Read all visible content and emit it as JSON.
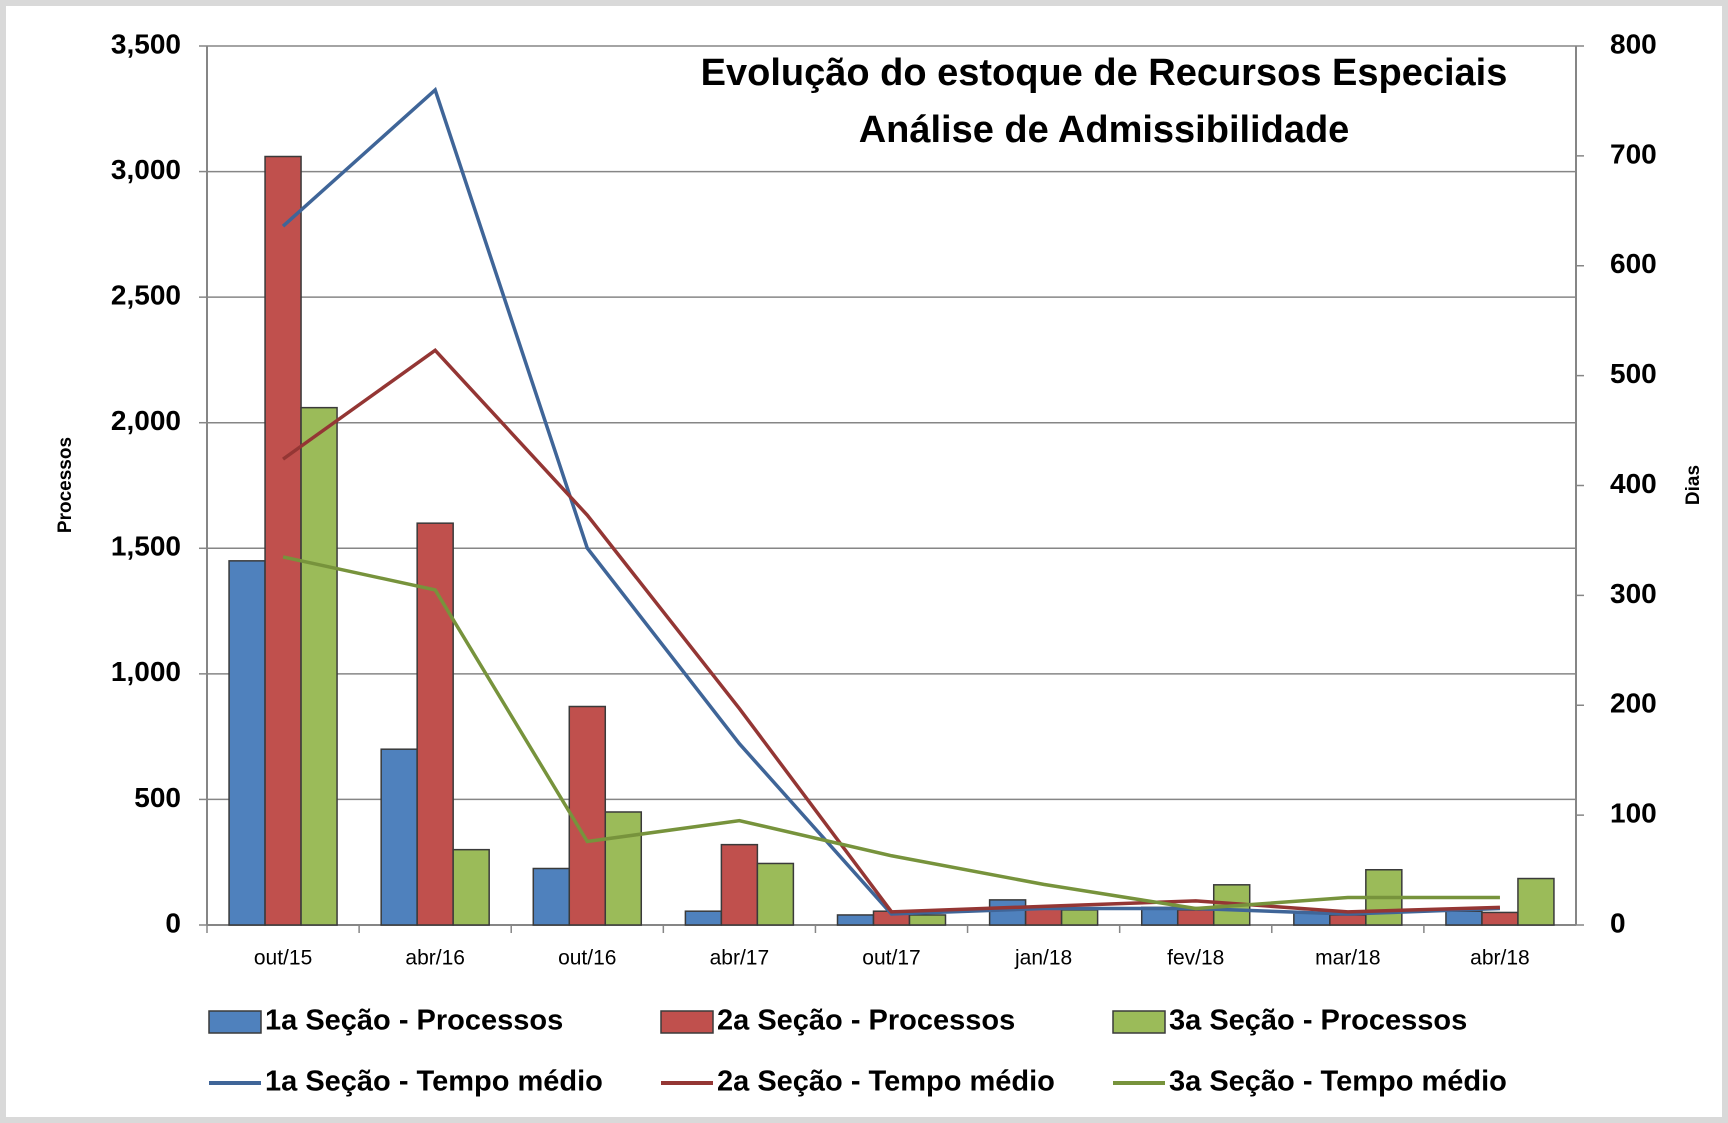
{
  "chart_data": {
    "type": "bar_line",
    "title": [
      "Evolução do estoque de Recursos Especiais",
      "Análise de Admissibilidade"
    ],
    "y_label": "Processos",
    "y2_label": "Dias",
    "categories": [
      "out/15",
      "abr/16",
      "out/16",
      "abr/17",
      "out/17",
      "jan/18",
      "fev/18",
      "mar/18",
      "abr/18"
    ],
    "series": [
      {
        "name": "1a Seção - Processos",
        "type": "bar",
        "color": "#4f81bd",
        "values": [
          1450,
          700,
          225,
          55,
          40,
          100,
          70,
          50,
          55
        ]
      },
      {
        "name": "2a Seção - Processos",
        "type": "bar",
        "color": "#c0504d",
        "values": [
          3060,
          1600,
          870,
          320,
          55,
          70,
          60,
          40,
          50
        ]
      },
      {
        "name": "3a Seção - Processos",
        "type": "bar",
        "color": "#9bbb59",
        "values": [
          2060,
          300,
          450,
          245,
          40,
          60,
          160,
          220,
          185
        ]
      },
      {
        "name": "1a Seção - Tempo médio",
        "type": "line",
        "axis": "y2",
        "color": "#3f6598",
        "values": [
          636,
          760,
          343,
          165,
          10,
          15,
          15,
          10,
          15
        ]
      },
      {
        "name": "2a Seção - Tempo médio",
        "type": "line",
        "axis": "y2",
        "color": "#943634",
        "values": [
          424,
          523,
          373,
          197,
          12,
          17,
          22,
          12,
          16
        ]
      },
      {
        "name": "3a Seção - Tempo médio",
        "type": "line",
        "axis": "y2",
        "color": "#77933c",
        "values": [
          335,
          305,
          76,
          95,
          63,
          37,
          15,
          25,
          25
        ]
      }
    ],
    "ylim": [
      0,
      3500
    ],
    "yticks": [
      0,
      {
        "value": 500,
        "label": "500"
      },
      {
        "value": 1000,
        "label": "1,000"
      },
      {
        "value": 1500,
        "label": "1,500"
      },
      {
        "value": 2000,
        "label": "2,000"
      },
      {
        "value": 2500,
        "label": "2,500"
      },
      {
        "value": 3000,
        "label": "3,000"
      },
      {
        "value": 3500,
        "label": "3,500"
      }
    ],
    "y2lim": [
      0,
      800
    ],
    "y2ticks": [
      0,
      100,
      200,
      300,
      400,
      500,
      600,
      700,
      800
    ],
    "grid": true
  }
}
